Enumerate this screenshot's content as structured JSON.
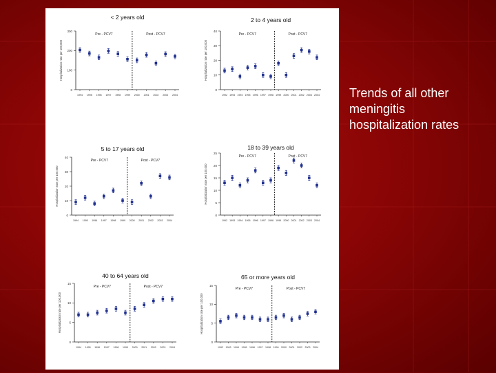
{
  "caption": "Trends of all other meningitis hospitalization rates",
  "colors": {
    "background": "#8a0505",
    "marker": "#1f2f8f",
    "text": "#ffffff"
  },
  "chart_data": [
    {
      "type": "scatter",
      "title": "< 2 years old",
      "ylabel": "Hospitalization rate per 100,000",
      "pre_label": "Pre - PCV7",
      "post_label": "Post - PCV7",
      "years": [
        "1994",
        "1995",
        "1996",
        "1997",
        "1998",
        "1999",
        "2000",
        "2001",
        "2002",
        "2003",
        "2004"
      ],
      "yticks": [
        0,
        100,
        200,
        300
      ],
      "ylim": [
        0,
        300
      ],
      "divider_after_index": 5.5,
      "values": [
        203,
        185,
        165,
        198,
        183,
        156,
        150,
        178,
        135,
        182,
        170
      ]
    },
    {
      "type": "scatter",
      "title": "2 to 4 years old",
      "ylabel": "Hospitalization rate per 100,000",
      "pre_label": "Pre - PCV7",
      "post_label": "Post - PCV7",
      "years": [
        "1992",
        "1993",
        "1994",
        "1995",
        "1996",
        "1997",
        "1998",
        "1999",
        "2000",
        "2001",
        "2002",
        "2003",
        "2004"
      ],
      "yticks": [
        0,
        10,
        20,
        30,
        40
      ],
      "ylim": [
        0,
        40
      ],
      "divider_after_index": 6.5,
      "values": [
        13,
        14,
        9,
        15,
        16,
        10,
        9,
        18,
        10,
        23,
        27,
        26,
        22
      ]
    },
    {
      "type": "scatter",
      "title": "5 to 17 years old",
      "ylabel": "Hospitalization rate per 100,000",
      "pre_label": "Pre - PCV7",
      "post_label": "Post - PCV7",
      "years": [
        "1994",
        "1995",
        "1996",
        "1997",
        "1998",
        "1999",
        "2000",
        "2001",
        "2002",
        "2003",
        "2004"
      ],
      "yticks": [
        0,
        10,
        20,
        30,
        40
      ],
      "ylim": [
        0,
        40
      ],
      "divider_after_index": 5.5,
      "values": [
        9,
        12,
        8,
        13,
        17,
        10,
        9,
        22,
        13,
        27,
        26
      ]
    },
    {
      "type": "scatter",
      "title": "18 to 39 years old",
      "ylabel": "Hospitalization rate per 100,000",
      "pre_label": "Pre - PCV7",
      "post_label": "Post - PCV7",
      "years": [
        "1992",
        "1993",
        "1994",
        "1995",
        "1996",
        "1997",
        "1998",
        "1999",
        "2000",
        "2001",
        "2002",
        "2003",
        "2004"
      ],
      "yticks": [
        0,
        5,
        10,
        15,
        20,
        25
      ],
      "ylim": [
        0,
        25
      ],
      "divider_after_index": 6.5,
      "values": [
        13,
        15,
        12,
        14,
        18,
        13,
        14,
        19,
        17,
        22,
        20,
        15,
        12
      ]
    },
    {
      "type": "scatter",
      "title": "40 to 64 years old",
      "ylabel": "Hospitalization rate per 100,000",
      "pre_label": "Pre - PCV7",
      "post_label": "Post - PCV7",
      "years": [
        "1994",
        "1995",
        "1996",
        "1997",
        "1998",
        "1999",
        "2000",
        "2001",
        "2002",
        "2003",
        "2004"
      ],
      "yticks": [
        0,
        5,
        10,
        15
      ],
      "ylim": [
        0,
        15
      ],
      "divider_after_index": 5.5,
      "values": [
        7,
        7,
        7.5,
        8,
        8.5,
        7.5,
        8.5,
        9.5,
        10.5,
        11,
        11
      ]
    },
    {
      "type": "scatter",
      "title": "65 or more years old",
      "ylabel": "Hospitalization rate per 100,000",
      "pre_label": "Pre - PCV7",
      "post_label": "Post - PCV7",
      "years": [
        "1992",
        "1993",
        "1994",
        "1995",
        "1996",
        "1997",
        "1998",
        "1999",
        "2000",
        "2001",
        "2002",
        "2003",
        "2004"
      ],
      "yticks": [
        0,
        5,
        10,
        15
      ],
      "ylim": [
        0,
        15
      ],
      "divider_after_index": 6.5,
      "values": [
        5.5,
        6.5,
        7,
        6.5,
        6.5,
        6,
        6,
        6.5,
        7,
        6,
        6.5,
        7.5,
        8
      ]
    }
  ]
}
